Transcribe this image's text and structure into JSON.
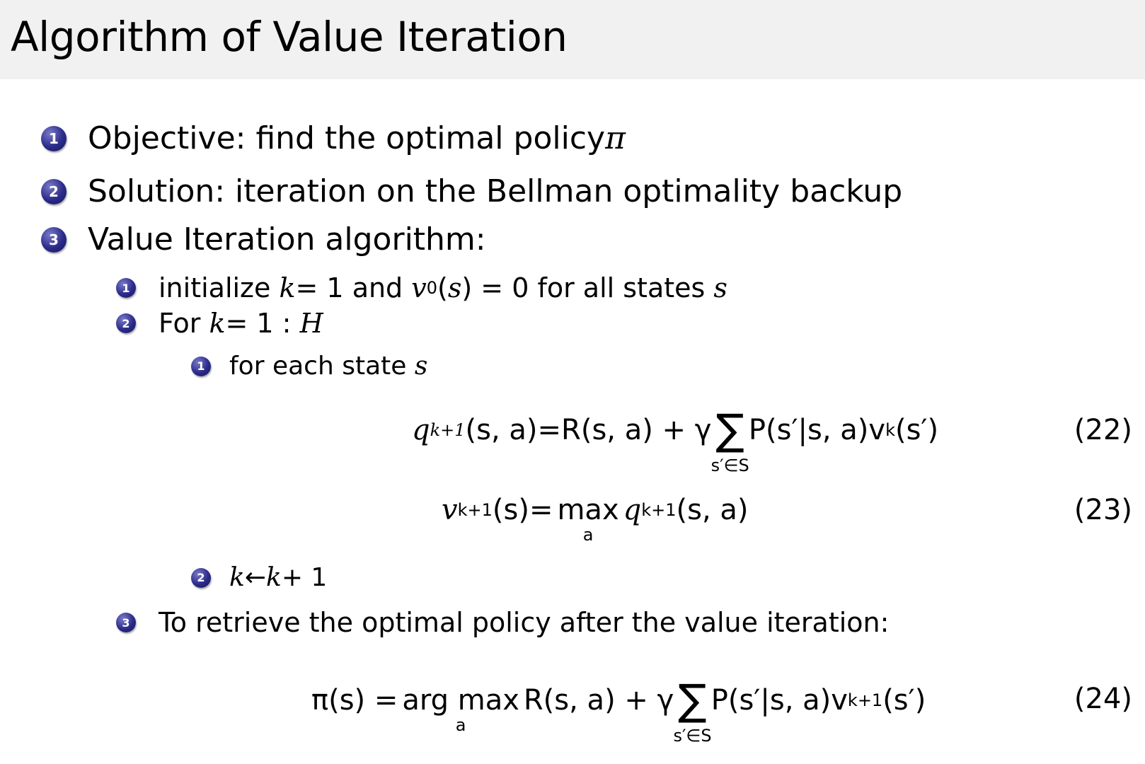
{
  "title": "Algorithm of Value Iteration",
  "bullet_color": "#2b2b8a",
  "items": [
    {
      "n": "1",
      "text": "Objective:  find the optimal policy ",
      "math": "π"
    },
    {
      "n": "2",
      "text": "Solution:  iteration on the Bellman optimality backup"
    },
    {
      "n": "3",
      "text": "Value Iteration algorithm:"
    }
  ],
  "sub": [
    {
      "n": "1",
      "a": "initialize ",
      "k": "k",
      "b": " = 1 and ",
      "v": "v",
      "v_sub": "0",
      "c": "(",
      "s": "s",
      "d": ") = 0 for all states ",
      "s2": "s"
    },
    {
      "n": "2",
      "a": "For ",
      "k": "k",
      "b": " = 1 : ",
      "H": "H"
    },
    {
      "n": "3",
      "text": "To retrieve the optimal policy after the value iteration:"
    }
  ],
  "subsub": [
    {
      "n": "1",
      "text": "for each state ",
      "s": "s"
    },
    {
      "n": "2",
      "k": "k",
      "arrow": " ← ",
      "k2": "k",
      "plus": " + 1"
    }
  ],
  "eq22": {
    "lhs": "q",
    "lhs_sub": "k+1",
    "lhs_args": "(s, a)",
    "eq": " =",
    "r": "R(s, a) + γ",
    "sigma": "∑",
    "sigma_sub": "s′∈S",
    "rest": "P(s′|s, a)v",
    "rest_sub": "k",
    "tail": "(s′)",
    "number": "(22)"
  },
  "eq23": {
    "lhs": "v",
    "lhs_sub": "k+1",
    "lhs_args": "(s)",
    "eq": " = ",
    "max": "max",
    "max_sub": "a",
    "q": "q",
    "q_sub": "k+1",
    "tail": "(s, a)",
    "number": "(23)"
  },
  "eq24": {
    "lhs": "π(s) = ",
    "argmax": "arg max",
    "argmax_sub": "a",
    "r": "R(s, a) + γ",
    "sigma": "∑",
    "sigma_sub": "s′∈S",
    "rest": "P(s′|s, a)v",
    "rest_sub": "k+1",
    "tail": "(s′)",
    "number": "(24)"
  }
}
